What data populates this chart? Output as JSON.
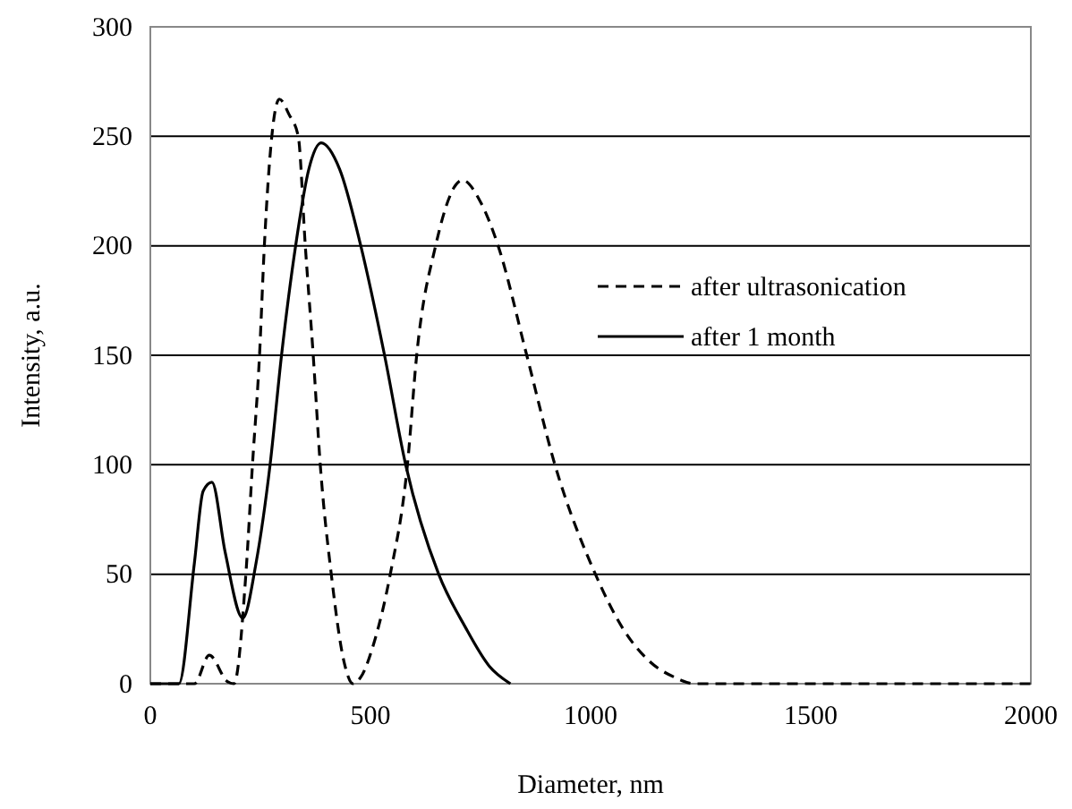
{
  "chart_data": {
    "type": "line",
    "xlabel": "Diameter, nm",
    "ylabel": "Intensity, a.u.",
    "xlim": [
      0,
      2000
    ],
    "xticks": [
      0,
      500,
      1000,
      1500,
      2000
    ],
    "ylim": [
      0,
      300
    ],
    "yticks": [
      0,
      50,
      100,
      150,
      200,
      250,
      300
    ],
    "grid": "y",
    "legend": "right",
    "marker": "none",
    "series": [
      {
        "name": "after ultrasonication",
        "color": "#000000",
        "line_style": "dashed",
        "x": [
          0,
          100,
          134,
          175,
          190,
          217,
          232,
          248,
          259,
          293,
          315,
          336,
          352,
          370,
          386,
          411,
          440,
          460,
          478,
          510,
          545,
          584,
          605,
          648,
          709,
          750,
          790,
          855,
          919,
          1011,
          1074,
          1135,
          1190,
          1236,
          2000
        ],
        "values": [
          0,
          0,
          13,
          1,
          0,
          50,
          100,
          150,
          200,
          267,
          260,
          250,
          200,
          150,
          100,
          50,
          10,
          0,
          3,
          20,
          50,
          100,
          150,
          200,
          230,
          220,
          200,
          150,
          100,
          50,
          25,
          10,
          3,
          0,
          0
        ]
      },
      {
        "name": "after 1 month",
        "color": "#000000",
        "line_style": "solid",
        "x": [
          0,
          65,
          100,
          120,
          140,
          170,
          210,
          240,
          272,
          298,
          330,
          360,
          388,
          430,
          478,
          532,
          580,
          655,
          715,
          770,
          818
        ],
        "values": [
          0,
          0,
          55,
          88,
          92,
          60,
          30,
          55,
          100,
          150,
          200,
          235,
          247,
          235,
          200,
          150,
          100,
          50,
          26,
          8,
          0
        ]
      }
    ]
  }
}
